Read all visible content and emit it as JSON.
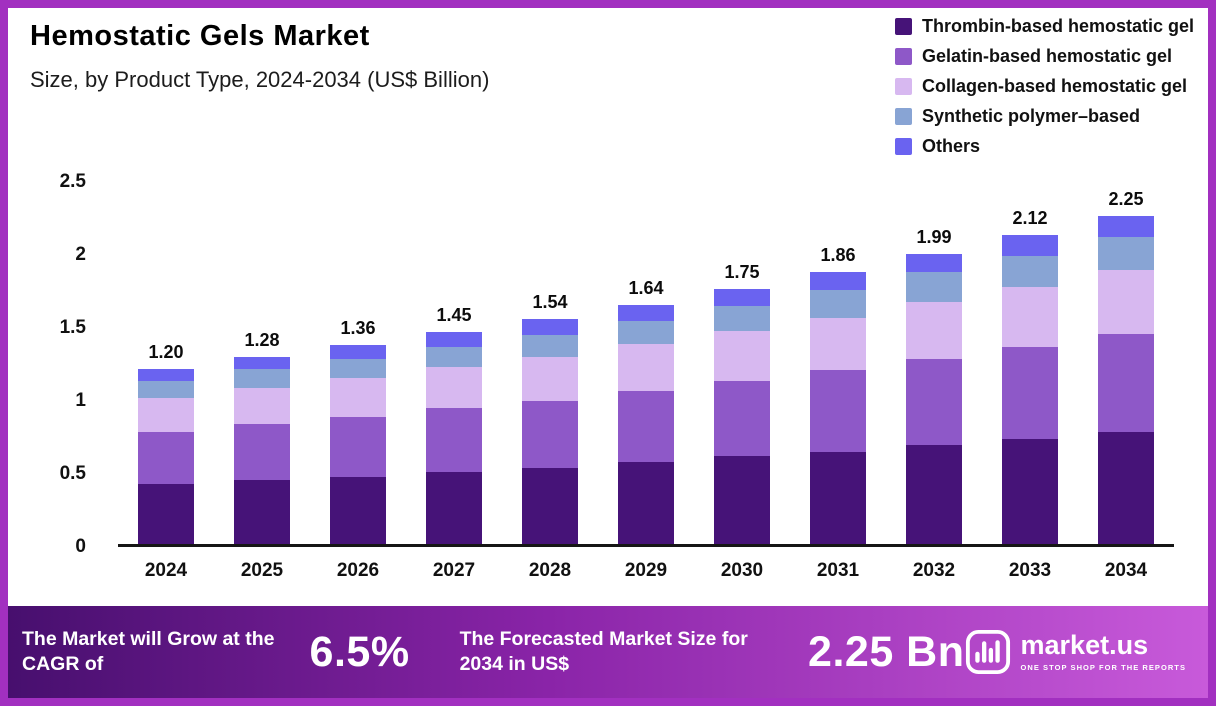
{
  "header": {
    "title": "Hemostatic Gels Market",
    "subtitle": "Size, by Product Type, 2024-2034 (US$ Billion)"
  },
  "colors": {
    "frame_border": "#a230c0",
    "footer_gradient_left": "#470f6e",
    "footer_gradient_mid": "#8a24a8",
    "footer_gradient_right": "#c85ada",
    "axis_line": "#161616",
    "footer_text": "#ffffff"
  },
  "chart_data": {
    "type": "bar",
    "stacked": true,
    "title": "Hemostatic Gels Market",
    "subtitle": "Size, by Product Type, 2024-2034 (US$ Billion)",
    "categories": [
      "2024",
      "2025",
      "2026",
      "2027",
      "2028",
      "2029",
      "2030",
      "2031",
      "2032",
      "2033",
      "2034"
    ],
    "series": [
      {
        "name": "Thrombin-based hemostatic gel",
        "color": "#461378",
        "values": [
          0.41,
          0.44,
          0.46,
          0.49,
          0.52,
          0.56,
          0.6,
          0.63,
          0.68,
          0.72,
          0.77
        ]
      },
      {
        "name": "Gelatin-based hemostatic gel",
        "color": "#8e58c8",
        "values": [
          0.36,
          0.38,
          0.41,
          0.44,
          0.46,
          0.49,
          0.52,
          0.56,
          0.59,
          0.63,
          0.67
        ]
      },
      {
        "name": "Collagen-based hemostatic gel",
        "color": "#d7b8f0",
        "values": [
          0.23,
          0.25,
          0.27,
          0.28,
          0.3,
          0.32,
          0.34,
          0.36,
          0.39,
          0.41,
          0.44
        ]
      },
      {
        "name": "Synthetic polymer–based",
        "color": "#88a4d4",
        "values": [
          0.12,
          0.13,
          0.13,
          0.14,
          0.15,
          0.16,
          0.17,
          0.19,
          0.2,
          0.21,
          0.22
        ]
      },
      {
        "name": "Others",
        "color": "#6a63f0",
        "values": [
          0.08,
          0.08,
          0.09,
          0.1,
          0.11,
          0.11,
          0.12,
          0.12,
          0.13,
          0.15,
          0.15
        ]
      }
    ],
    "totals": [
      1.2,
      1.28,
      1.36,
      1.45,
      1.54,
      1.64,
      1.75,
      1.86,
      1.99,
      2.12,
      2.25
    ],
    "total_labels": [
      "1.20",
      "1.28",
      "1.36",
      "1.45",
      "1.54",
      "1.64",
      "1.75",
      "1.86",
      "1.99",
      "2.12",
      "2.25"
    ],
    "xlabel": "",
    "ylabel": "",
    "ylim": [
      0,
      2.5
    ],
    "yticks": [
      0,
      0.5,
      1,
      1.5,
      2,
      2.5
    ],
    "ytick_labels": [
      "0",
      "0.5",
      "1",
      "1.5",
      "2",
      "2.5"
    ],
    "legend_position": "top-right",
    "grid": false
  },
  "footer": {
    "cagr_label": "The Market will Grow at the CAGR of",
    "cagr_value": "6.5%",
    "forecast_label": "The Forecasted Market Size for 2034 in US$",
    "forecast_value": "2.25 Bn",
    "brand": "market.us",
    "brand_tagline": "ONE STOP SHOP FOR THE REPORTS"
  }
}
